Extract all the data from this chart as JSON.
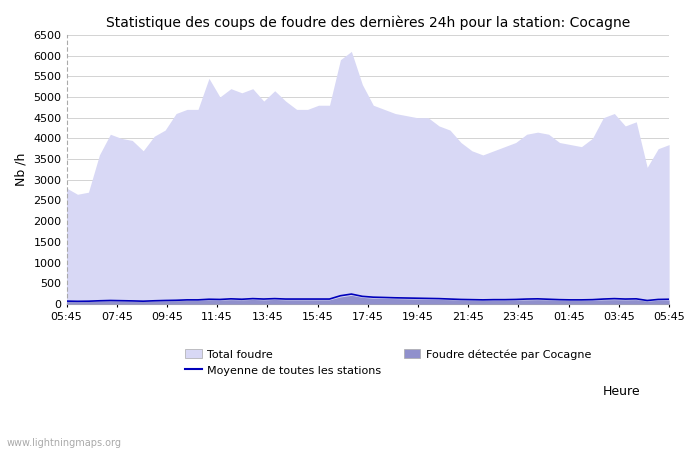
{
  "title": "Statistique des coups de foudre des dernières 24h pour la station: Cocagne",
  "xlabel": "Heure",
  "ylabel": "Nb /h",
  "ylim": [
    0,
    6500
  ],
  "yticks": [
    0,
    500,
    1000,
    1500,
    2000,
    2500,
    3000,
    3500,
    4000,
    4500,
    5000,
    5500,
    6000,
    6500
  ],
  "x_labels": [
    "05:45",
    "07:45",
    "09:45",
    "11:45",
    "13:45",
    "15:45",
    "17:45",
    "19:45",
    "21:45",
    "23:45",
    "01:45",
    "03:45",
    "05:45"
  ],
  "bg_color": "#ffffff",
  "plot_bg_color": "#ffffff",
  "grid_color": "#cccccc",
  "fill_total_color": "#d8d8f5",
  "fill_local_color": "#9090cc",
  "line_color": "#0000bb",
  "total_foudre": [
    2800,
    2650,
    2700,
    3600,
    4100,
    4000,
    3950,
    3700,
    4050,
    4200,
    4600,
    4700,
    4700,
    5450,
    5000,
    5200,
    5100,
    5200,
    4900,
    5150,
    4900,
    4700,
    4700,
    4800,
    4800,
    5900,
    6100,
    5300,
    4800,
    4700,
    4600,
    4550,
    4500,
    4500,
    4300,
    4200,
    3900,
    3700,
    3600,
    3700,
    3800,
    3900,
    4100,
    4150,
    4100,
    3900,
    3850,
    3800,
    4000,
    4500,
    4600,
    4300,
    4400,
    3300,
    3750,
    3850
  ],
  "local_foudre": [
    60,
    55,
    60,
    70,
    75,
    70,
    65,
    60,
    70,
    75,
    80,
    90,
    90,
    100,
    95,
    105,
    100,
    110,
    100,
    110,
    100,
    100,
    100,
    100,
    100,
    170,
    210,
    160,
    140,
    135,
    130,
    125,
    120,
    115,
    110,
    105,
    95,
    90,
    85,
    90,
    90,
    95,
    100,
    105,
    100,
    90,
    85,
    85,
    90,
    100,
    105,
    100,
    105,
    70,
    90,
    95
  ],
  "mean_line": [
    70,
    65,
    68,
    78,
    85,
    80,
    75,
    68,
    78,
    85,
    90,
    100,
    100,
    115,
    110,
    125,
    115,
    130,
    120,
    130,
    120,
    120,
    120,
    120,
    120,
    200,
    240,
    185,
    165,
    158,
    150,
    145,
    140,
    135,
    130,
    120,
    110,
    105,
    100,
    105,
    105,
    110,
    120,
    125,
    115,
    105,
    100,
    100,
    105,
    120,
    130,
    120,
    125,
    85,
    110,
    115
  ],
  "watermark": "www.lightningmaps.org",
  "legend_total": "Total foudre",
  "legend_mean": "Moyenne de toutes les stations",
  "legend_local": "Foudre détectée par Cocagne"
}
